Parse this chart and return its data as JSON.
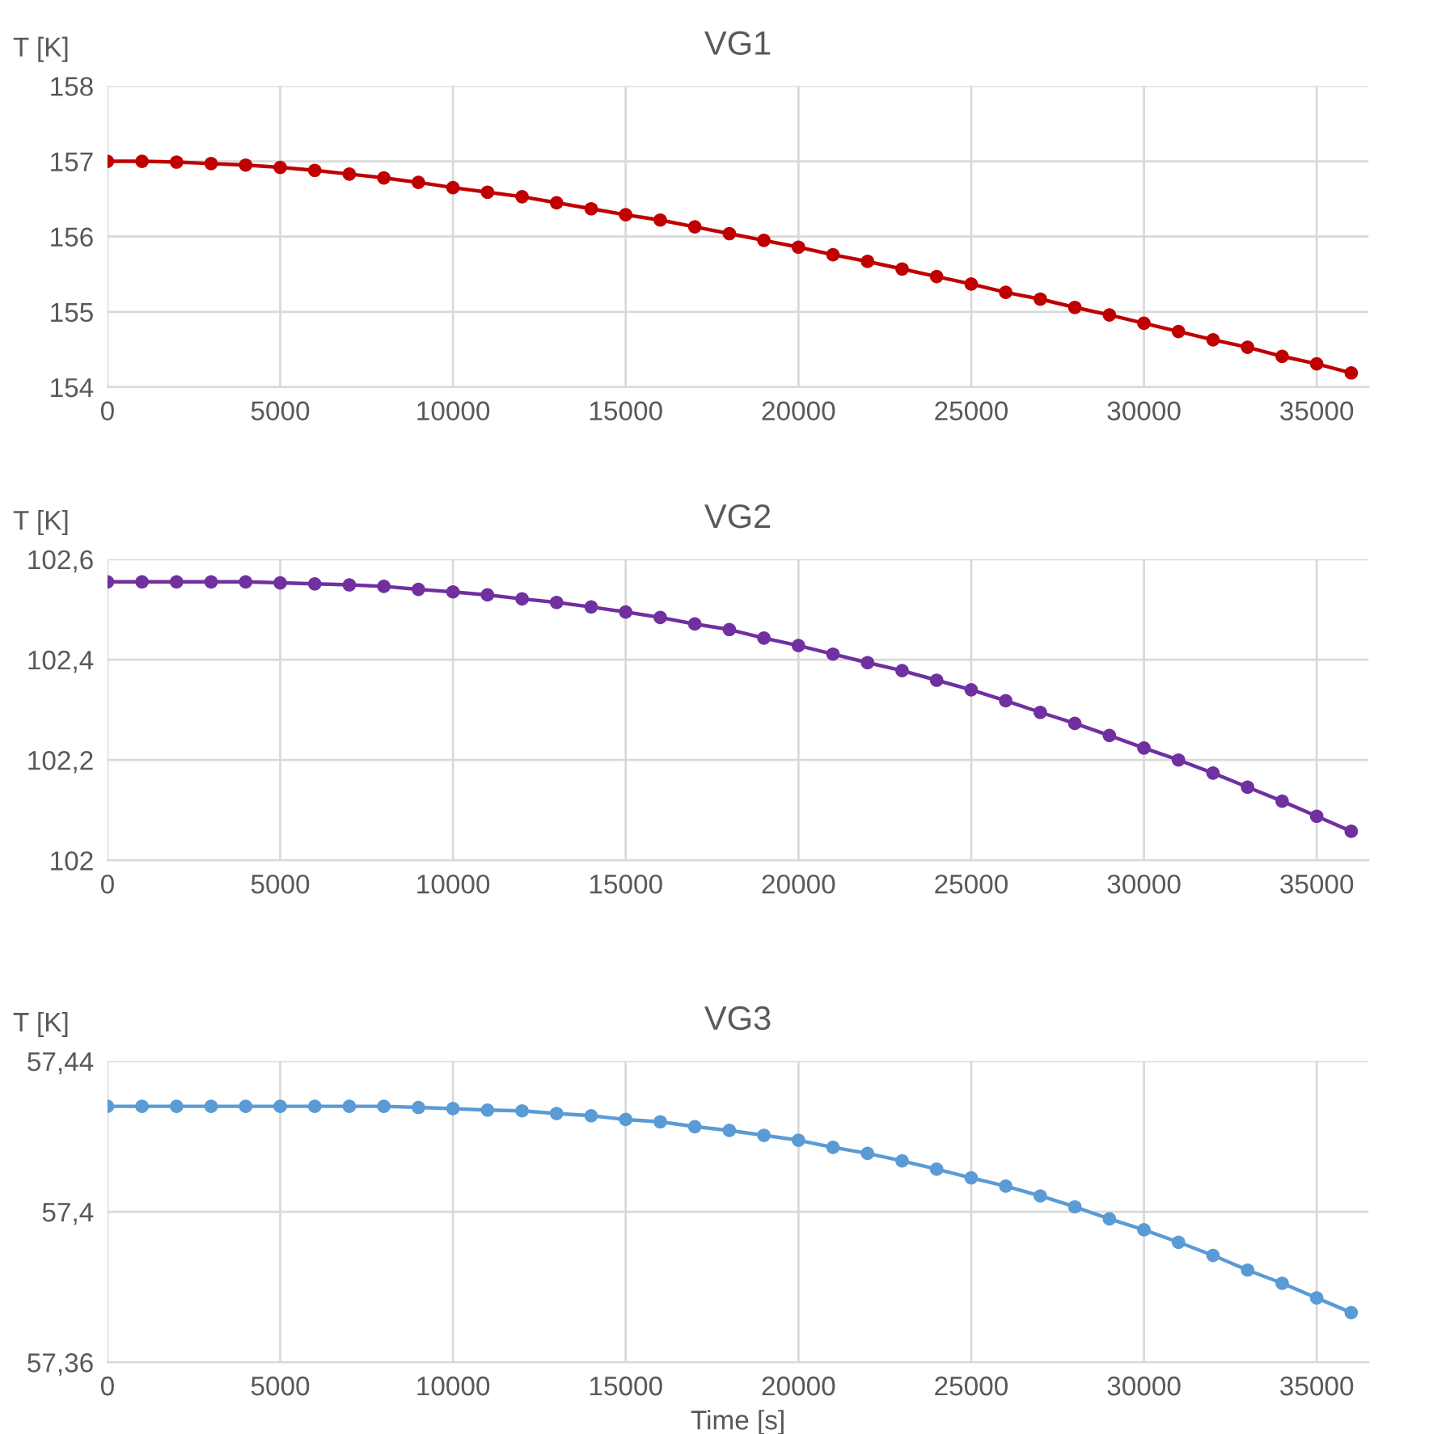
{
  "chart_data": [
    {
      "type": "line",
      "title": "VG1",
      "ylabel": "T [K]",
      "x": [
        0,
        1000,
        2000,
        3000,
        4000,
        5000,
        6000,
        7000,
        8000,
        9000,
        10000,
        11000,
        12000,
        13000,
        14000,
        15000,
        16000,
        17000,
        18000,
        19000,
        20000,
        21000,
        22000,
        23000,
        24000,
        25000,
        26000,
        27000,
        28000,
        29000,
        30000,
        31000,
        32000,
        33000,
        34000,
        35000,
        36000
      ],
      "series": [
        {
          "color": "#c00000",
          "values": [
            157.0,
            157.0,
            156.99,
            156.97,
            156.95,
            156.92,
            156.88,
            156.83,
            156.78,
            156.72,
            156.65,
            156.59,
            156.53,
            156.45,
            156.37,
            156.29,
            156.22,
            156.13,
            156.04,
            155.95,
            155.86,
            155.76,
            155.67,
            155.57,
            155.47,
            155.37,
            155.26,
            155.17,
            155.06,
            154.96,
            154.85,
            154.74,
            154.63,
            154.53,
            154.41,
            154.31,
            154.19
          ]
        }
      ],
      "xlim": [
        0,
        36500
      ],
      "xticks": [
        0,
        5000,
        10000,
        15000,
        20000,
        25000,
        30000,
        35000
      ],
      "ylim": [
        154,
        158
      ],
      "yticks": [
        154,
        155,
        156,
        157,
        158
      ],
      "grid": true,
      "marker": "circle",
      "line_style": "solid"
    },
    {
      "type": "line",
      "title": "VG2",
      "ylabel": "T [K]",
      "x": [
        0,
        1000,
        2000,
        3000,
        4000,
        5000,
        6000,
        7000,
        8000,
        9000,
        10000,
        11000,
        12000,
        13000,
        14000,
        15000,
        16000,
        17000,
        18000,
        19000,
        20000,
        21000,
        22000,
        23000,
        24000,
        25000,
        26000,
        27000,
        28000,
        29000,
        30000,
        31000,
        32000,
        33000,
        34000,
        35000,
        36000
      ],
      "series": [
        {
          "color": "#7030a0",
          "values": [
            102.555,
            102.555,
            102.555,
            102.555,
            102.555,
            102.553,
            102.551,
            102.549,
            102.546,
            102.54,
            102.535,
            102.529,
            102.521,
            102.514,
            102.505,
            102.495,
            102.484,
            102.471,
            102.46,
            102.443,
            102.428,
            102.411,
            102.394,
            102.378,
            102.359,
            102.34,
            102.318,
            102.295,
            102.273,
            102.249,
            102.224,
            102.2,
            102.174,
            102.146,
            102.118,
            102.088,
            102.058
          ]
        }
      ],
      "xlim": [
        0,
        36500
      ],
      "xticks": [
        0,
        5000,
        10000,
        15000,
        20000,
        25000,
        30000,
        35000
      ],
      "ylim": [
        102,
        102.6
      ],
      "yticks": [
        {
          "value": 102,
          "label": "102"
        },
        {
          "value": 102.2,
          "label": "102,2"
        },
        {
          "value": 102.4,
          "label": "102,4"
        },
        {
          "value": 102.6,
          "label": "102,6"
        }
      ],
      "grid": true,
      "marker": "circle",
      "line_style": "solid"
    },
    {
      "type": "line",
      "title": "VG3",
      "ylabel": "T [K]",
      "xlabel": "Time [s]",
      "x": [
        0,
        1000,
        2000,
        3000,
        4000,
        5000,
        6000,
        7000,
        8000,
        9000,
        10000,
        11000,
        12000,
        13000,
        14000,
        15000,
        16000,
        17000,
        18000,
        19000,
        20000,
        21000,
        22000,
        23000,
        24000,
        25000,
        26000,
        27000,
        28000,
        29000,
        30000,
        31000,
        32000,
        33000,
        34000,
        35000,
        36000
      ],
      "series": [
        {
          "color": "#5b9bd5",
          "values": [
            57.428,
            57.428,
            57.428,
            57.428,
            57.428,
            57.428,
            57.428,
            57.428,
            57.428,
            57.4277,
            57.4274,
            57.427,
            57.4268,
            57.4261,
            57.4255,
            57.4245,
            57.4239,
            57.4226,
            57.4216,
            57.4203,
            57.419,
            57.4171,
            57.4155,
            57.4135,
            57.4113,
            57.409,
            57.4068,
            57.4042,
            57.4013,
            57.3981,
            57.3952,
            57.3919,
            57.3884,
            57.3845,
            57.381,
            57.3771,
            57.3732
          ]
        }
      ],
      "xlim": [
        0,
        36500
      ],
      "xticks": [
        0,
        5000,
        10000,
        15000,
        20000,
        25000,
        30000,
        35000
      ],
      "ylim": [
        57.36,
        57.44
      ],
      "yticks": [
        {
          "value": 57.36,
          "label": "57,36"
        },
        {
          "value": 57.4,
          "label": "57,4"
        },
        {
          "value": 57.44,
          "label": "57,44"
        }
      ],
      "grid": true,
      "marker": "circle",
      "line_style": "solid"
    }
  ]
}
